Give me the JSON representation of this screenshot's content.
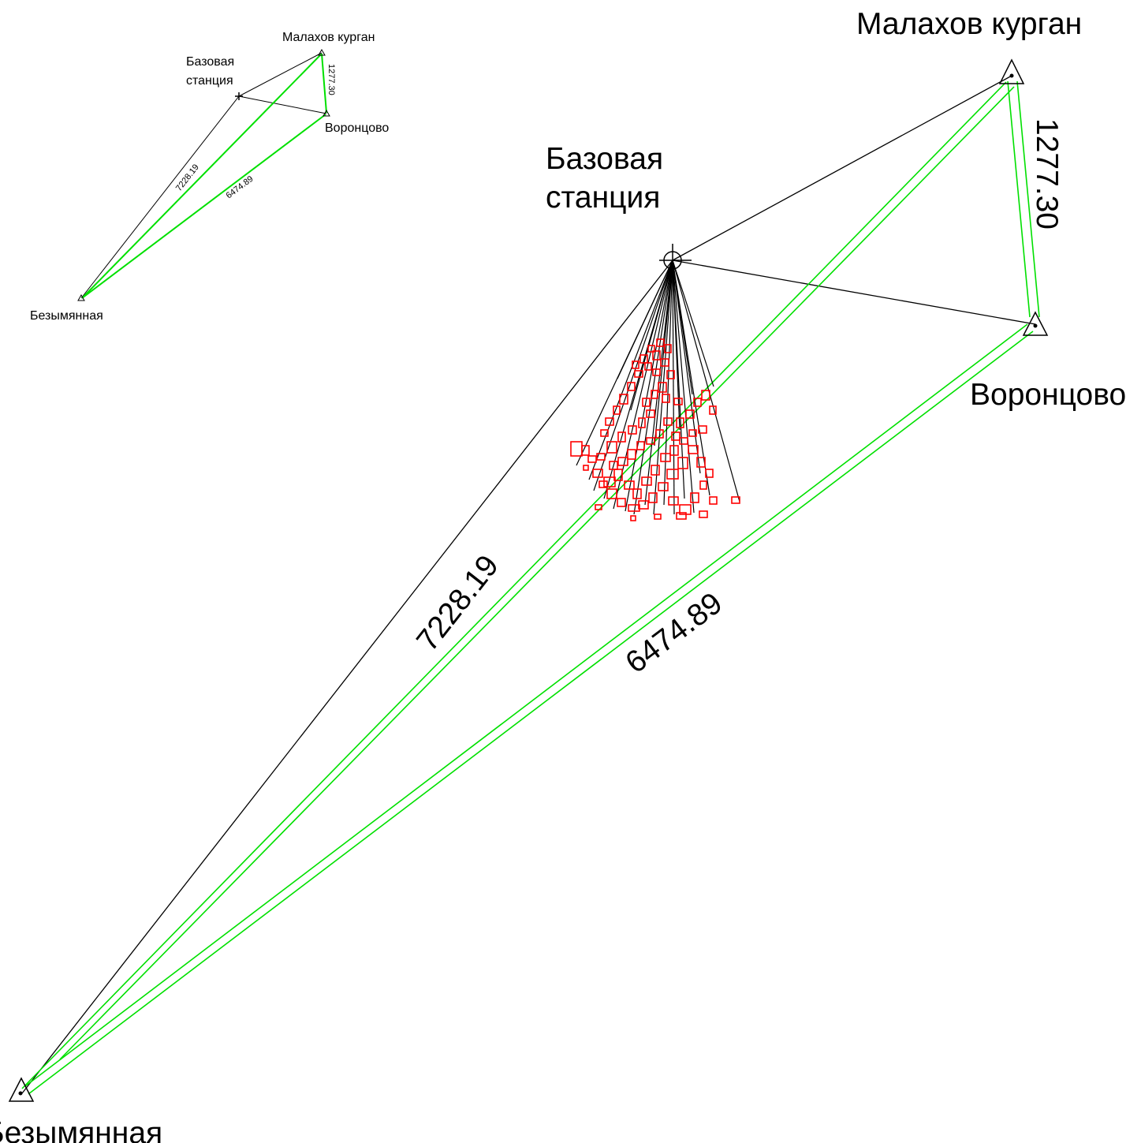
{
  "stations": {
    "malakhov": "Малахов курган",
    "base_line1": "Базовая",
    "base_line2": "станция",
    "vorontsovo": "Воронцово",
    "bezymyannaya": "Безымянная"
  },
  "distances": {
    "malakhov_vorontsovo": "1277.30",
    "base_bezymyannaya": "7228.19",
    "vorontsovo_bezymyannaya": "6474.89"
  },
  "colors": {
    "baseline": "#00e000",
    "ray": "#000000",
    "buildings": "#ff0000"
  }
}
